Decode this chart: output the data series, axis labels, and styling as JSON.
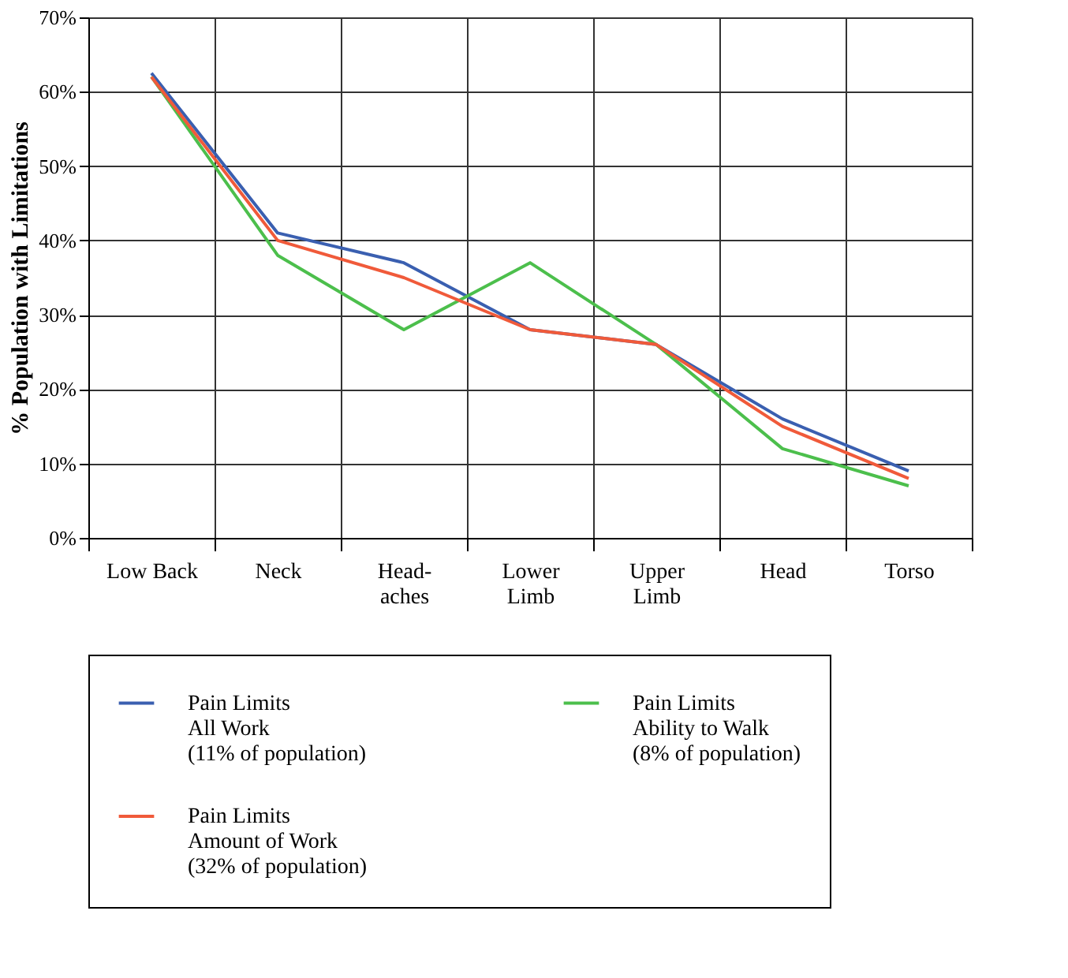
{
  "chart_data": {
    "type": "line",
    "ylabel": "% Population with Limitations",
    "categories": [
      "Low Back",
      "Neck",
      "Head-\naches",
      "Lower\nLimb",
      "Upper\nLimb",
      "Head",
      "Torso"
    ],
    "series": [
      {
        "name": "Pain Limits\nAll Work\n(11% of population)",
        "color": "#3a5fb0",
        "values": [
          62.5,
          41,
          37,
          28,
          26,
          16,
          9
        ]
      },
      {
        "name": "Pain Limits\nAbility to Walk\n(8% of population)",
        "color": "#4cbf4c",
        "values": [
          62,
          38,
          28,
          37,
          26,
          12,
          7
        ]
      },
      {
        "name": "Pain Limits\nAmount of Work\n(32% of population)",
        "color": "#f05a3a",
        "values": [
          62,
          40,
          35,
          28,
          26,
          15,
          8
        ]
      }
    ],
    "ylim": [
      0,
      70
    ],
    "yticks": [
      {
        "value": 0,
        "label": "0%"
      },
      {
        "value": 10,
        "label": "10%"
      },
      {
        "value": 20,
        "label": "20%"
      },
      {
        "value": 30,
        "label": "30%"
      },
      {
        "value": 40,
        "label": "40%"
      },
      {
        "value": 50,
        "label": "50%"
      },
      {
        "value": 60,
        "label": "60%"
      },
      {
        "value": 70,
        "label": "70%"
      }
    ],
    "grid": true,
    "legend": "bottom",
    "marker": "none",
    "line_style": "solid"
  }
}
